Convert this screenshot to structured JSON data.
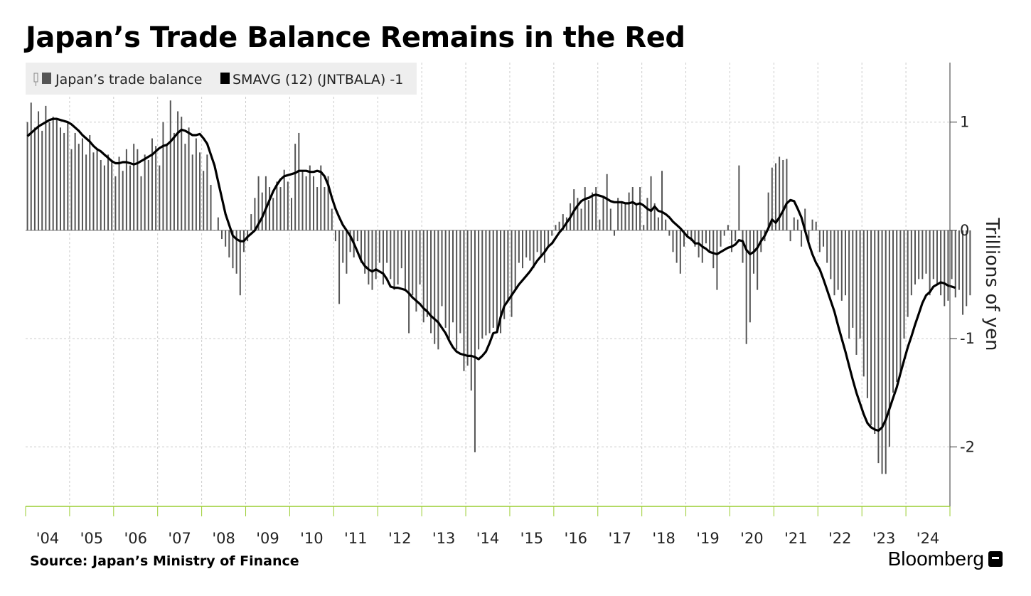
{
  "title": "Japan’s Trade Balance Remains in the Red",
  "source": "Source: Japan’s Ministry of Finance",
  "brand": "Bloomberg",
  "colors": {
    "bars": "#555555",
    "line": "#000000",
    "axis_baseline": "#9acd32",
    "grid": "#cccccc"
  },
  "chart_data": {
    "type": "bar",
    "ylabel": "Trillions of yen",
    "ylim": [
      -2.55,
      1.55
    ],
    "yticks": [
      1,
      0,
      -1,
      -2
    ],
    "ytick_labels": [
      "1",
      "0",
      "-1",
      "-2"
    ],
    "xlim": [
      2004.0,
      2025.0
    ],
    "x_tick_labels": [
      "'04",
      "'05",
      "'06",
      "'07",
      "'08",
      "'09",
      "'10",
      "'11",
      "'12",
      "'13",
      "'14",
      "'15",
      "'16",
      "'17",
      "'18",
      "'19",
      "'20",
      "'21",
      "'22",
      "'23",
      "'24"
    ],
    "x_tick_years": [
      2004,
      2005,
      2006,
      2007,
      2008,
      2009,
      2010,
      2011,
      2012,
      2013,
      2014,
      2015,
      2016,
      2017,
      2018,
      2019,
      2020,
      2021,
      2022,
      2023,
      2024
    ],
    "grid": true,
    "legend_position": "top-left",
    "series": [
      {
        "name": "Japan’s trade balance",
        "kind": "bar",
        "x_start": "2004-01",
        "frequency": "monthly",
        "values": [
          1.0,
          1.18,
          0.95,
          1.1,
          0.92,
          1.15,
          1.0,
          1.05,
          1.02,
          0.95,
          0.9,
          1.0,
          0.75,
          0.9,
          0.8,
          0.85,
          0.7,
          0.88,
          0.72,
          0.75,
          0.65,
          0.6,
          0.7,
          0.65,
          0.5,
          0.68,
          0.55,
          0.75,
          0.6,
          0.8,
          0.75,
          0.5,
          0.7,
          0.65,
          0.85,
          0.78,
          0.6,
          1.0,
          0.8,
          1.2,
          0.9,
          1.1,
          1.05,
          0.8,
          0.95,
          0.7,
          0.85,
          0.72,
          0.55,
          0.7,
          0.42,
          0.0,
          0.12,
          -0.08,
          -0.15,
          -0.25,
          -0.35,
          -0.4,
          -0.6,
          -0.2,
          -0.1,
          0.15,
          0.3,
          0.5,
          0.35,
          0.5,
          0.4,
          0.3,
          0.45,
          0.4,
          0.56,
          0.45,
          0.3,
          0.8,
          0.9,
          0.55,
          0.5,
          0.6,
          0.5,
          0.4,
          0.6,
          0.4,
          0.5,
          0.2,
          -0.1,
          -0.68,
          -0.3,
          -0.4,
          -0.2,
          -0.25,
          -0.1,
          -0.3,
          -0.4,
          -0.5,
          -0.55,
          -0.45,
          -0.3,
          -0.5,
          -0.3,
          -0.45,
          -0.55,
          -0.5,
          -0.35,
          -0.55,
          -0.95,
          -0.6,
          -0.75,
          -0.5,
          -0.85,
          -0.8,
          -0.95,
          -1.05,
          -1.1,
          -0.7,
          -0.9,
          -1.0,
          -0.85,
          -1.1,
          -0.95,
          -1.3,
          -1.25,
          -1.48,
          -2.05,
          -1.1,
          -1.0,
          -0.97,
          -0.95,
          -0.9,
          -0.92,
          -0.95,
          -0.82,
          -0.65,
          -0.8,
          -0.55,
          -0.3,
          -0.35,
          -0.25,
          -0.28,
          -0.35,
          -0.2,
          -0.25,
          -0.3,
          -0.15,
          -0.05,
          0.05,
          0.08,
          0.15,
          0.12,
          0.25,
          0.38,
          0.3,
          0.2,
          0.4,
          0.28,
          0.35,
          0.4,
          0.1,
          0.3,
          0.52,
          0.2,
          -0.05,
          0.3,
          0.25,
          0.25,
          0.35,
          0.4,
          0.25,
          0.4,
          0.05,
          0.3,
          0.5,
          0.25,
          0.12,
          0.55,
          0.1,
          -0.05,
          -0.2,
          -0.3,
          -0.4,
          -0.15,
          -0.05,
          -0.1,
          -0.15,
          -0.25,
          -0.3,
          -0.12,
          -0.2,
          -0.35,
          -0.55,
          -0.15,
          -0.05,
          0.05,
          -0.2,
          -0.1,
          0.6,
          -0.3,
          -1.05,
          -0.85,
          -0.4,
          -0.55,
          -0.2,
          -0.1,
          0.35,
          0.58,
          0.62,
          0.68,
          0.65,
          0.66,
          -0.1,
          0.12,
          0.1,
          -0.15,
          0.2,
          -0.1,
          0.1,
          0.08,
          -0.2,
          -0.15,
          -0.3,
          -0.45,
          -0.6,
          -0.55,
          -0.65,
          -0.6,
          -1.0,
          -0.9,
          -1.15,
          -1.0,
          -1.35,
          -1.55,
          -1.8,
          -1.88,
          -2.15,
          -2.25,
          -2.25,
          -2.0,
          -1.5,
          -1.4,
          -1.3,
          -1.0,
          -0.8,
          -0.6,
          -0.5,
          -0.45,
          -0.45,
          -0.4,
          -0.6,
          -0.45,
          -0.5,
          -0.6,
          -0.7,
          -0.65,
          -0.45,
          -0.62,
          -0.55,
          -0.78,
          -0.7,
          -0.6
        ]
      },
      {
        "name": "SMAVG (12) (JNTBALA) -1",
        "kind": "line",
        "x_start": "2004-01",
        "frequency": "monthly",
        "values": [
          0.87,
          0.9,
          0.93,
          0.96,
          0.98,
          1.0,
          1.02,
          1.03,
          1.03,
          1.02,
          1.01,
          1.0,
          0.98,
          0.95,
          0.92,
          0.88,
          0.85,
          0.82,
          0.78,
          0.75,
          0.73,
          0.7,
          0.67,
          0.64,
          0.62,
          0.62,
          0.63,
          0.63,
          0.62,
          0.61,
          0.62,
          0.64,
          0.66,
          0.68,
          0.7,
          0.73,
          0.76,
          0.78,
          0.79,
          0.82,
          0.86,
          0.9,
          0.93,
          0.92,
          0.9,
          0.88,
          0.88,
          0.89,
          0.85,
          0.8,
          0.7,
          0.6,
          0.45,
          0.3,
          0.15,
          0.05,
          -0.05,
          -0.08,
          -0.1,
          -0.1,
          -0.06,
          -0.03,
          0.0,
          0.06,
          0.12,
          0.2,
          0.28,
          0.36,
          0.42,
          0.47,
          0.5,
          0.51,
          0.52,
          0.53,
          0.55,
          0.55,
          0.55,
          0.54,
          0.54,
          0.55,
          0.54,
          0.5,
          0.42,
          0.3,
          0.2,
          0.12,
          0.05,
          0.0,
          -0.05,
          -0.12,
          -0.2,
          -0.28,
          -0.33,
          -0.36,
          -0.38,
          -0.36,
          -0.38,
          -0.4,
          -0.45,
          -0.52,
          -0.53,
          -0.53,
          -0.54,
          -0.55,
          -0.58,
          -0.62,
          -0.65,
          -0.68,
          -0.72,
          -0.75,
          -0.79,
          -0.82,
          -0.85,
          -0.9,
          -0.95,
          -1.02,
          -1.08,
          -1.12,
          -1.14,
          -1.15,
          -1.16,
          -1.16,
          -1.17,
          -1.19,
          -1.16,
          -1.12,
          -1.04,
          -0.95,
          -0.94,
          -0.8,
          -0.7,
          -0.65,
          -0.6,
          -0.55,
          -0.5,
          -0.46,
          -0.42,
          -0.38,
          -0.33,
          -0.28,
          -0.24,
          -0.2,
          -0.15,
          -0.12,
          -0.07,
          -0.02,
          0.02,
          0.07,
          0.12,
          0.18,
          0.23,
          0.27,
          0.29,
          0.3,
          0.32,
          0.33,
          0.32,
          0.31,
          0.29,
          0.27,
          0.26,
          0.26,
          0.26,
          0.25,
          0.25,
          0.26,
          0.24,
          0.25,
          0.23,
          0.2,
          0.18,
          0.22,
          0.18,
          0.17,
          0.15,
          0.12,
          0.08,
          0.05,
          0.02,
          -0.02,
          -0.06,
          -0.08,
          -0.12,
          -0.12,
          -0.15,
          -0.17,
          -0.2,
          -0.21,
          -0.22,
          -0.2,
          -0.18,
          -0.16,
          -0.15,
          -0.13,
          -0.09,
          -0.1,
          -0.18,
          -0.22,
          -0.2,
          -0.16,
          -0.1,
          -0.05,
          0.02,
          0.1,
          0.07,
          0.12,
          0.18,
          0.25,
          0.28,
          0.27,
          0.2,
          0.12,
          0.0,
          -0.12,
          -0.22,
          -0.3,
          -0.36,
          -0.45,
          -0.55,
          -0.65,
          -0.75,
          -0.88,
          -1.0,
          -1.12,
          -1.25,
          -1.38,
          -1.5,
          -1.6,
          -1.7,
          -1.78,
          -1.82,
          -1.84,
          -1.85,
          -1.82,
          -1.75,
          -1.65,
          -1.55,
          -1.45,
          -1.32,
          -1.2,
          -1.08,
          -0.98,
          -0.87,
          -0.77,
          -0.67,
          -0.6,
          -0.57,
          -0.52,
          -0.5,
          -0.48,
          -0.49,
          -0.51,
          -0.52,
          -0.53
        ]
      }
    ]
  }
}
